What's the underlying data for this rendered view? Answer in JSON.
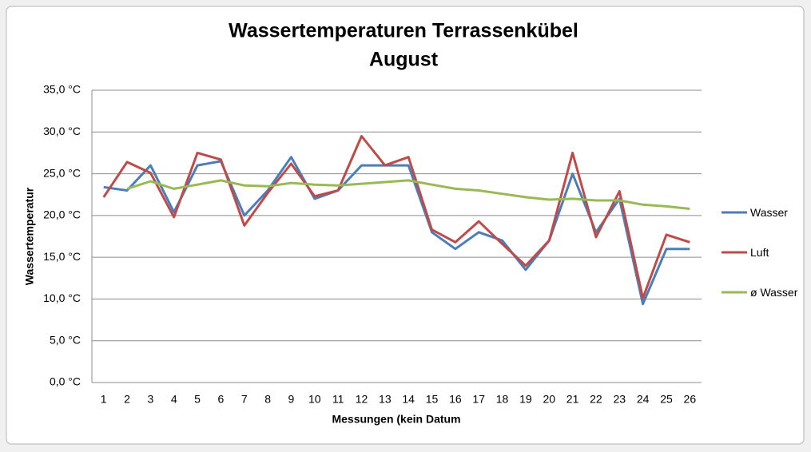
{
  "chart_data": {
    "type": "line",
    "title": [
      "Wassertemperaturen Terrassenkübel",
      "August"
    ],
    "y_label": "Wassertemperatur",
    "x_label": "Messungen (kein Datum",
    "categories": [
      "1",
      "2",
      "3",
      "4",
      "5",
      "6",
      "7",
      "8",
      "9",
      "10",
      "11",
      "12",
      "13",
      "14",
      "15",
      "16",
      "17",
      "18",
      "19",
      "20",
      "21",
      "22",
      "23",
      "24",
      "25",
      "26"
    ],
    "series": [
      {
        "name": "Wasser",
        "color": "#4a7ebb",
        "values": [
          23.4,
          23.0,
          26.0,
          20.4,
          26.0,
          26.5,
          20.0,
          23.0,
          27.0,
          22.0,
          23.0,
          26.0,
          26.0,
          26.0,
          18.0,
          16.0,
          18.0,
          17.0,
          13.5,
          17.0,
          25.0,
          18.0,
          22.0,
          9.4,
          16.0,
          16.0
        ]
      },
      {
        "name": "Luft",
        "color": "#be4b48",
        "values": [
          22.2,
          26.4,
          25.1,
          19.8,
          27.5,
          26.7,
          18.8,
          22.7,
          26.2,
          22.3,
          23.0,
          29.5,
          26.0,
          27.0,
          18.3,
          16.8,
          19.3,
          16.6,
          14.0,
          17.0,
          27.5,
          17.4,
          22.9,
          10.1,
          17.7,
          16.8
        ]
      },
      {
        "name": "ø Wasser",
        "color": "#98b954",
        "values": [
          null,
          23.2,
          24.1,
          23.2,
          23.7,
          24.2,
          23.6,
          23.5,
          23.9,
          23.7,
          23.6,
          23.8,
          24.0,
          24.2,
          23.7,
          23.2,
          23.0,
          22.6,
          22.2,
          21.9,
          22.0,
          21.8,
          21.8,
          21.3,
          21.1,
          20.8
        ]
      }
    ],
    "ylim": [
      0,
      35
    ],
    "yticks": [
      {
        "value": 0,
        "label": "0,0 °C"
      },
      {
        "value": 5,
        "label": "5,0 °C"
      },
      {
        "value": 10,
        "label": "10,0 °C"
      },
      {
        "value": 15,
        "label": "15,0 °C"
      },
      {
        "value": 20,
        "label": "20,0 °C"
      },
      {
        "value": 25,
        "label": "25,0 °C"
      },
      {
        "value": 30,
        "label": "30,0 °C"
      },
      {
        "value": 35,
        "label": "35,0 °C"
      }
    ],
    "grid": true,
    "legend": "right"
  }
}
